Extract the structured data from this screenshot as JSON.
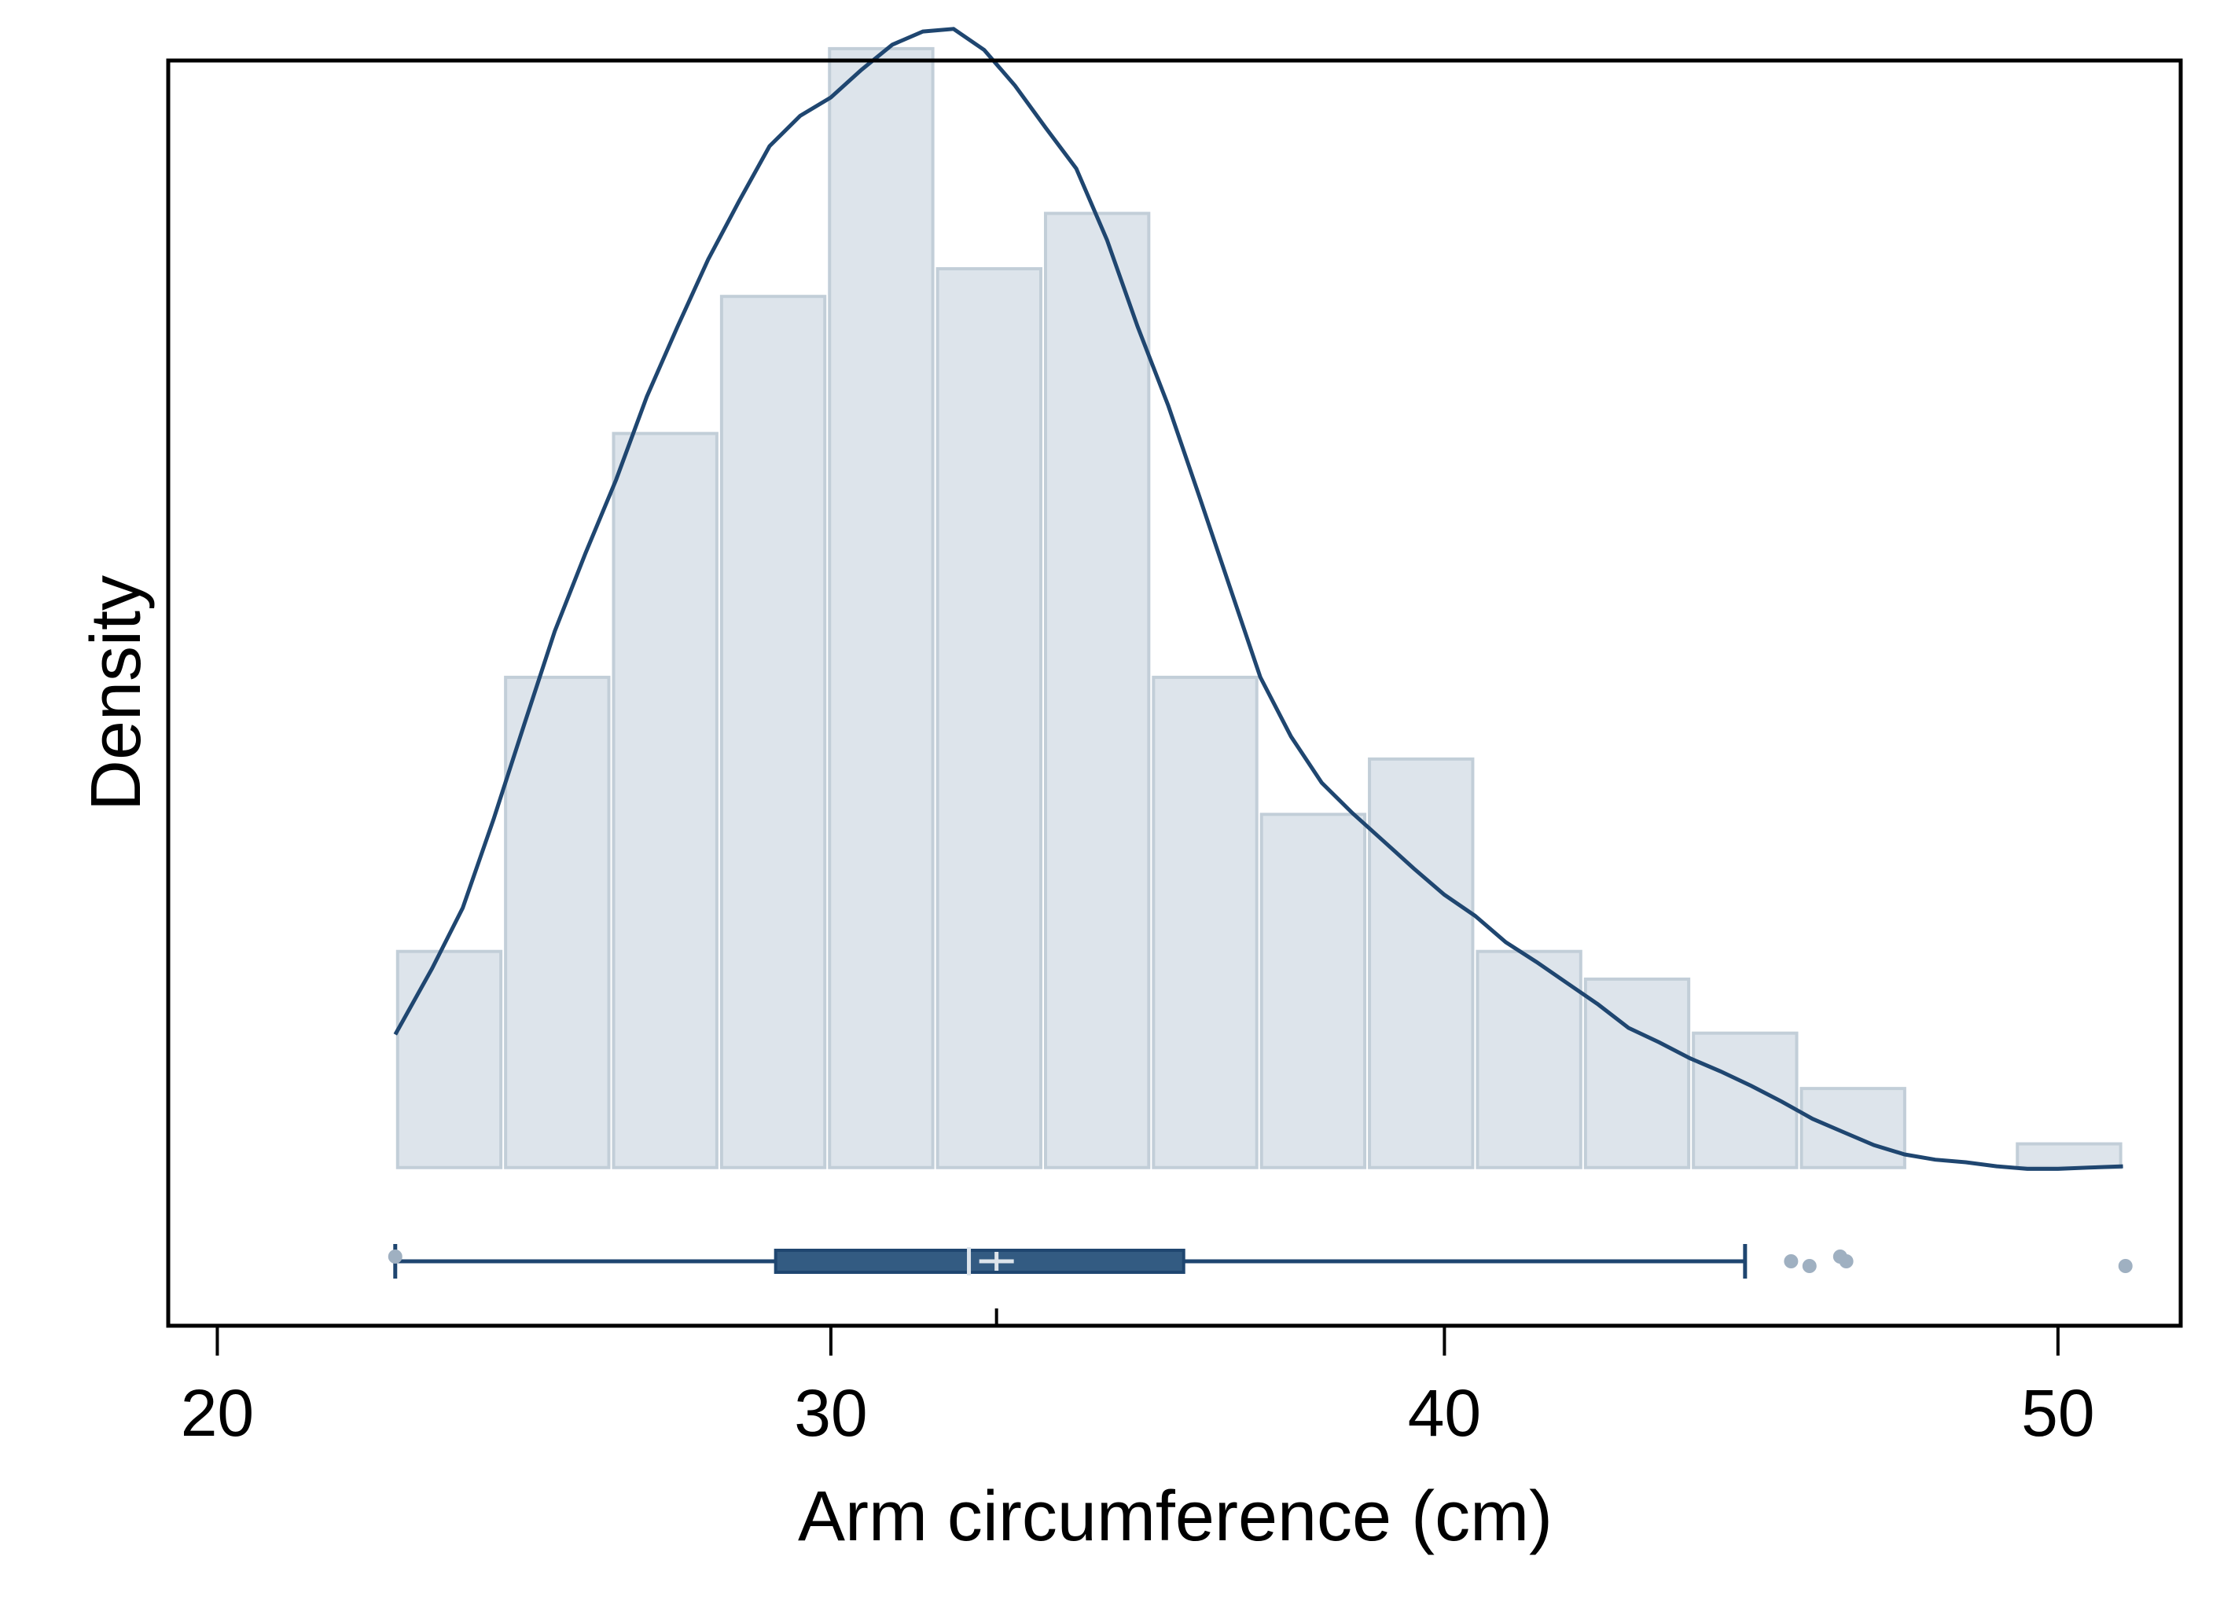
{
  "chart_data": {
    "type": "bar",
    "subtype": "histogram with kernel density and box plot",
    "xlabel": "Arm circumference (cm)",
    "ylabel": "Density",
    "xlim": [
      19.2,
      52
    ],
    "ylim": [
      -0.012,
      0.084
    ],
    "x_ticks": [
      "20",
      "30",
      "40",
      "50"
    ],
    "x_tick_values": [
      20,
      30,
      40,
      50
    ],
    "y_ticks_shown": false,
    "grid": false,
    "legend": "none",
    "histogram": {
      "bin_width": 1.76,
      "bins": [
        {
          "x0": 22.9,
          "x1": 24.66,
          "density": 0.0164
        },
        {
          "x0": 24.66,
          "x1": 26.42,
          "density": 0.0372
        },
        {
          "x0": 26.42,
          "x1": 28.18,
          "density": 0.0557
        },
        {
          "x0": 28.18,
          "x1": 29.94,
          "density": 0.0661
        },
        {
          "x0": 29.94,
          "x1": 31.7,
          "density": 0.0849
        },
        {
          "x0": 31.7,
          "x1": 33.46,
          "density": 0.0682
        },
        {
          "x0": 33.46,
          "x1": 35.22,
          "density": 0.0724
        },
        {
          "x0": 35.22,
          "x1": 36.98,
          "density": 0.0372
        },
        {
          "x0": 36.98,
          "x1": 38.74,
          "density": 0.0268
        },
        {
          "x0": 38.74,
          "x1": 40.5,
          "density": 0.031
        },
        {
          "x0": 40.5,
          "x1": 42.26,
          "density": 0.0164
        },
        {
          "x0": 42.26,
          "x1": 44.02,
          "density": 0.0143
        },
        {
          "x0": 44.02,
          "x1": 45.78,
          "density": 0.0102
        },
        {
          "x0": 45.78,
          "x1": 47.54,
          "density": 0.006
        },
        {
          "x0": 47.54,
          "x1": 49.3,
          "density": 0.0
        },
        {
          "x0": 49.3,
          "x1": 51.06,
          "density": 0.0018
        }
      ]
    },
    "kde": {
      "x": [
        22.9,
        23.5,
        24,
        24.5,
        25,
        25.5,
        26,
        26.5,
        27,
        27.5,
        28,
        28.5,
        29,
        29.5,
        30,
        30.5,
        31,
        31.5,
        32,
        32.5,
        33,
        33.5,
        34,
        34.5,
        35,
        35.5,
        36,
        36.5,
        37,
        37.5,
        38,
        38.5,
        39,
        39.5,
        40,
        40.5,
        41,
        41.5,
        42,
        42.5,
        43,
        43.5,
        44,
        44.5,
        45,
        45.5,
        46,
        46.5,
        47,
        47.5,
        48,
        48.5,
        49,
        49.5,
        50,
        50.5,
        51.06
      ],
      "y": [
        0.0101,
        0.0151,
        0.0197,
        0.0264,
        0.0336,
        0.0407,
        0.0466,
        0.0522,
        0.0585,
        0.0638,
        0.0689,
        0.0733,
        0.0775,
        0.0798,
        0.0812,
        0.0833,
        0.0852,
        0.0862,
        0.0864,
        0.0848,
        0.0821,
        0.0789,
        0.0758,
        0.0704,
        0.0638,
        0.0578,
        0.051,
        0.0441,
        0.0372,
        0.0327,
        0.0292,
        0.0269,
        0.0248,
        0.0227,
        0.0207,
        0.0191,
        0.0171,
        0.0156,
        0.014,
        0.0124,
        0.0106,
        0.0095,
        0.0083,
        0.0073,
        0.0062,
        0.005,
        0.0037,
        0.0027,
        0.0017,
        0.001,
        0.0006,
        0.0004,
        0.0001,
        -0.0001,
        -0.0001,
        0.0,
        0.0001
      ]
    },
    "boxplot": {
      "whisker_low": 22.9,
      "q1": 29.1,
      "median": 32.25,
      "mean": 32.7,
      "q3": 35.75,
      "whisker_high": 44.9,
      "outliers": [
        22.9,
        45.65,
        45.95,
        46.45,
        46.55,
        51.1
      ]
    },
    "colors": {
      "bar_fill": "#dde4eb",
      "bar_edge": "#c2ced8",
      "kde_line": "#1f4670",
      "box_fill": "#335b82",
      "box_line": "#1f4670",
      "median_mark": "#dde4eb",
      "outlier": "#9fb0c1",
      "frame": "#000000"
    }
  }
}
